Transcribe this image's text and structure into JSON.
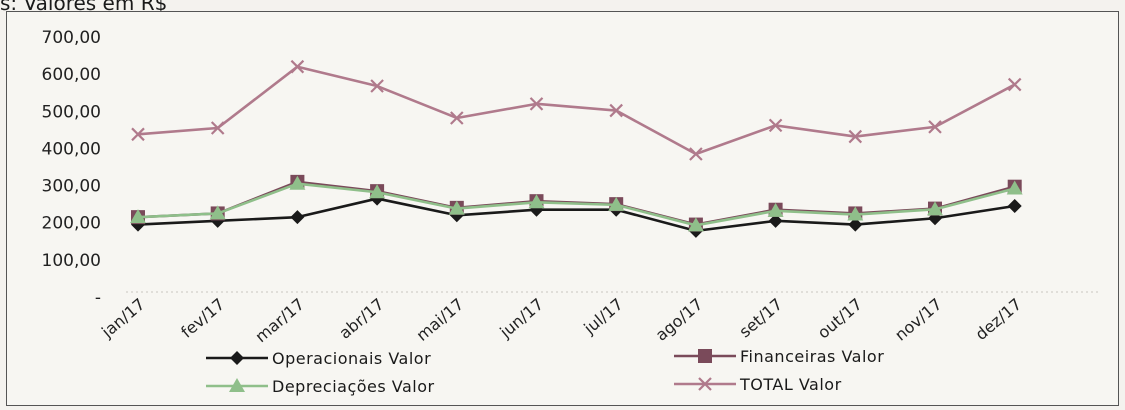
{
  "caption": "s: Valores em R$",
  "chart_data": {
    "type": "line",
    "categories": [
      "jan/17",
      "fev/17",
      "mar/17",
      "abr/17",
      "mai/17",
      "jun/17",
      "jul/17",
      "ago/17",
      "set/17",
      "out/17",
      "nov/17",
      "dez/17"
    ],
    "yticks": [
      "-",
      "100,00",
      "200,00",
      "300,00",
      "400,00",
      "500,00",
      "600,00",
      "700,00"
    ],
    "ylim": [
      0,
      700
    ],
    "grid": false,
    "legend_position": "bottom",
    "series": [
      {
        "name": "Operacionais Valor",
        "color": "#1a1a1a",
        "marker": "diamond",
        "values": [
          195,
          205,
          215,
          265,
          220,
          235,
          235,
          178,
          205,
          195,
          212,
          245
        ]
      },
      {
        "name": "Financeiras Valor",
        "color": "#7a4a5a",
        "marker": "square",
        "values": [
          215,
          225,
          310,
          285,
          240,
          258,
          250,
          195,
          235,
          225,
          238,
          297
        ]
      },
      {
        "name": "Depreciações Valor",
        "color": "#8fbf8a",
        "marker": "triangle",
        "values": [
          215,
          225,
          305,
          282,
          238,
          255,
          248,
          193,
          232,
          222,
          236,
          292
        ]
      },
      {
        "name": "TOTAL Valor",
        "color": "#b07a8c",
        "marker": "cross",
        "values": [
          438,
          455,
          620,
          568,
          482,
          520,
          502,
          385,
          462,
          432,
          458,
          572
        ]
      }
    ]
  }
}
